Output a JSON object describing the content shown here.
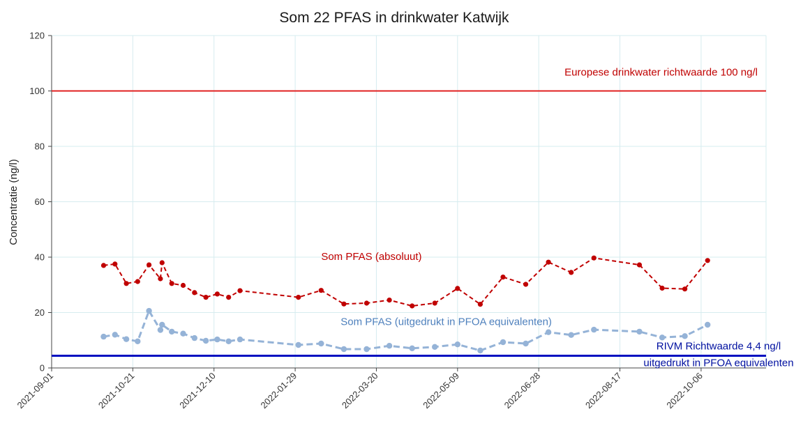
{
  "chart_data": {
    "type": "line",
    "title": "Som 22 PFAS in drinkwater Katwijk",
    "ylabel": "Concentratie (ng/l)",
    "xlabel": "",
    "x_axis": {
      "type": "date",
      "min": "2021-09-01",
      "max": "2022-11-15",
      "ticks": [
        "2021-09-01",
        "2021-10-21",
        "2021-12-10",
        "2022-01-29",
        "2022-03-20",
        "2022-05-09",
        "2022-06-28",
        "2022-08-17",
        "2022-10-06"
      ]
    },
    "y_axis": {
      "min": 0,
      "max": 120,
      "ticks": [
        0,
        20,
        40,
        60,
        80,
        100,
        120
      ]
    },
    "grid": true,
    "series": [
      {
        "name": "Som PFAS (absoluut)",
        "color": "#c00000",
        "style": "dashed",
        "marker": "circle",
        "points": [
          [
            "2021-10-03",
            37
          ],
          [
            "2021-10-10",
            37.5
          ],
          [
            "2021-10-17",
            30.5
          ],
          [
            "2021-10-24",
            31.2
          ],
          [
            "2021-10-31",
            37.2
          ],
          [
            "2021-11-07",
            32.2
          ],
          [
            "2021-11-08",
            38
          ],
          [
            "2021-11-14",
            30.5
          ],
          [
            "2021-11-21",
            29.8
          ],
          [
            "2021-11-28",
            27.2
          ],
          [
            "2021-12-05",
            25.5
          ],
          [
            "2021-12-12",
            26.7
          ],
          [
            "2021-12-19",
            25.5
          ],
          [
            "2021-12-26",
            27.9
          ],
          [
            "2022-01-31",
            25.5
          ],
          [
            "2022-02-14",
            28
          ],
          [
            "2022-02-28",
            23.1
          ],
          [
            "2022-03-14",
            23.4
          ],
          [
            "2022-03-28",
            24.5
          ],
          [
            "2022-04-11",
            22.4
          ],
          [
            "2022-04-25",
            23.4
          ],
          [
            "2022-05-09",
            28.7
          ],
          [
            "2022-05-23",
            23
          ],
          [
            "2022-06-06",
            32.8
          ],
          [
            "2022-06-20",
            30.2
          ],
          [
            "2022-07-04",
            38.2
          ],
          [
            "2022-07-18",
            34.5
          ],
          [
            "2022-08-01",
            39.7
          ],
          [
            "2022-08-29",
            37.2
          ],
          [
            "2022-09-12",
            28.8
          ],
          [
            "2022-09-26",
            28.5
          ],
          [
            "2022-10-10",
            38.8
          ]
        ]
      },
      {
        "name": "Som PFAS (uitgedrukt in PFOA equivalenten)",
        "color": "#95b3d7",
        "style": "dashed",
        "marker": "circle",
        "points": [
          [
            "2021-10-03",
            11.3
          ],
          [
            "2021-10-10",
            12
          ],
          [
            "2021-10-17",
            10.4
          ],
          [
            "2021-10-24",
            9.6
          ],
          [
            "2021-10-31",
            20.6
          ],
          [
            "2021-11-07",
            13.7
          ],
          [
            "2021-11-08",
            15.6
          ],
          [
            "2021-11-14",
            13.1
          ],
          [
            "2021-11-21",
            12.4
          ],
          [
            "2021-11-28",
            10.8
          ],
          [
            "2021-12-05",
            9.8
          ],
          [
            "2021-12-12",
            10.3
          ],
          [
            "2021-12-19",
            9.6
          ],
          [
            "2021-12-26",
            10.3
          ],
          [
            "2022-01-31",
            8.3
          ],
          [
            "2022-02-14",
            8.8
          ],
          [
            "2022-02-28",
            6.8
          ],
          [
            "2022-03-14",
            6.8
          ],
          [
            "2022-03-28",
            8
          ],
          [
            "2022-04-11",
            7.1
          ],
          [
            "2022-04-25",
            7.6
          ],
          [
            "2022-05-09",
            8.5
          ],
          [
            "2022-05-23",
            6.3
          ],
          [
            "2022-06-06",
            9.3
          ],
          [
            "2022-06-20",
            8.8
          ],
          [
            "2022-07-04",
            12.9
          ],
          [
            "2022-07-18",
            11.9
          ],
          [
            "2022-08-01",
            13.8
          ],
          [
            "2022-08-29",
            13.1
          ],
          [
            "2022-09-12",
            11
          ],
          [
            "2022-09-26",
            11.5
          ],
          [
            "2022-10-10",
            15.6
          ]
        ]
      }
    ],
    "reference_lines": [
      {
        "value": 100,
        "color": "#e02020",
        "label": [
          "Europese drinkwater richtwaarde 100 ng/l"
        ],
        "label_color": "#c00000"
      },
      {
        "value": 4.4,
        "color": "#0010c0",
        "label": [
          "RIVM Richtwaarde 4,4 ng/l",
          "uitgedrukt in PFOA equivalenten"
        ],
        "label_color": "#0010a0"
      }
    ],
    "annotations": [
      {
        "text": "Som PFAS (absoluut)",
        "color": "#c00000",
        "x": "2022-02-14",
        "y": 39
      },
      {
        "text": "Som PFAS (uitgedrukt in PFOA equivalenten)",
        "color": "#4f81bd",
        "x": "2022-02-26",
        "y": 15.5
      }
    ]
  }
}
